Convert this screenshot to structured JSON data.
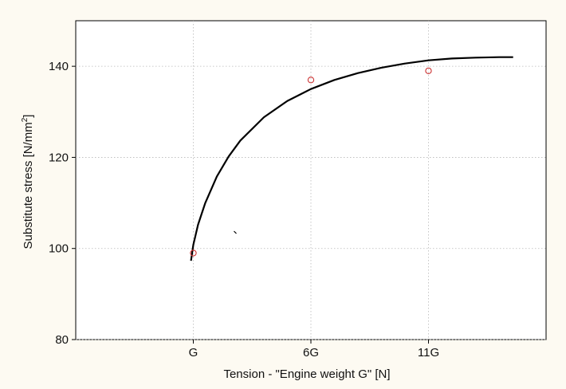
{
  "chart_data": {
    "type": "scatter",
    "xlabel": "Tension - \"Engine weight G\" [N]",
    "ylabel_main": "Substitute stress [N/mm",
    "ylabel_sup": "2",
    "ylabel_end": "]",
    "x_ticks": [
      {
        "value": 1,
        "label": "G"
      },
      {
        "value": 6,
        "label": "6G"
      },
      {
        "value": 11,
        "label": "11G"
      }
    ],
    "y_ticks": [
      80,
      100,
      120,
      140
    ],
    "xlim": [
      -4,
      16
    ],
    "ylim": [
      80,
      150
    ],
    "grid": true,
    "series": [
      {
        "kind": "points",
        "color": "#cc3333",
        "x": [
          1,
          6,
          11
        ],
        "y": [
          99,
          137,
          139
        ]
      },
      {
        "kind": "fit-curve",
        "color": "#000000",
        "x": [
          0.9,
          1.0,
          1.2,
          1.5,
          2.0,
          2.5,
          3.0,
          4.0,
          5.0,
          6.0,
          7.0,
          8.0,
          9.0,
          10.0,
          11.0,
          12.0,
          13.0,
          14.0,
          14.6
        ],
        "y": [
          97.3,
          100.8,
          105.2,
          109.9,
          115.8,
          120.2,
          123.7,
          128.8,
          132.4,
          135.0,
          137.0,
          138.5,
          139.7,
          140.6,
          141.3,
          141.7,
          141.9,
          142.0,
          142.0
        ]
      }
    ]
  }
}
